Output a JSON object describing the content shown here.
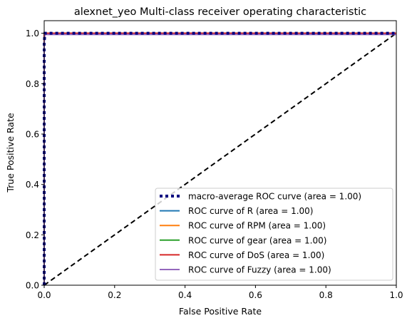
{
  "chart_data": {
    "type": "line",
    "title": "alexnet_yeo Multi-class receiver operating characteristic",
    "xlabel": "False Positive Rate",
    "ylabel": "True Positive Rate",
    "xlim": [
      0.0,
      1.0
    ],
    "ylim": [
      0.0,
      1.05
    ],
    "xticks": [
      "0.0",
      "0.2",
      "0.4",
      "0.6",
      "0.8",
      "1.0"
    ],
    "yticks": [
      "0.0",
      "0.2",
      "0.4",
      "0.6",
      "0.8",
      "1.0"
    ],
    "grid": false,
    "legend_position": "lower-right",
    "chance_line": {
      "x": [
        0,
        1
      ],
      "y": [
        0,
        1
      ],
      "color": "#000000",
      "style": "dashed"
    },
    "series": [
      {
        "name": "macro-average ROC curve (area = 1.00)",
        "color": "#000080",
        "style": "dotted",
        "x": [
          0,
          0,
          0.002,
          1
        ],
        "y": [
          0,
          0.96,
          1.0,
          1.0
        ]
      },
      {
        "name": "ROC curve of R (area = 1.00)",
        "color": "#1f77b4",
        "style": "solid",
        "x": [
          0,
          0,
          1
        ],
        "y": [
          0,
          1.0,
          1.0
        ]
      },
      {
        "name": "ROC curve of RPM (area = 1.00)",
        "color": "#ff7f0e",
        "style": "solid",
        "x": [
          0,
          0,
          1
        ],
        "y": [
          0,
          1.0,
          1.0
        ]
      },
      {
        "name": "ROC curve of gear (area = 1.00)",
        "color": "#2ca02c",
        "style": "solid",
        "x": [
          0,
          0,
          1
        ],
        "y": [
          0,
          1.0,
          1.0
        ]
      },
      {
        "name": "ROC curve of DoS (area = 1.00)",
        "color": "#d62728",
        "style": "solid",
        "x": [
          0,
          0,
          1
        ],
        "y": [
          0,
          1.0,
          1.0
        ]
      },
      {
        "name": "ROC curve of Fuzzy (area = 1.00)",
        "color": "#9467bd",
        "style": "solid",
        "x": [
          0,
          0,
          0.002,
          1
        ],
        "y": [
          0,
          0.96,
          0.995,
          0.995
        ]
      }
    ]
  }
}
